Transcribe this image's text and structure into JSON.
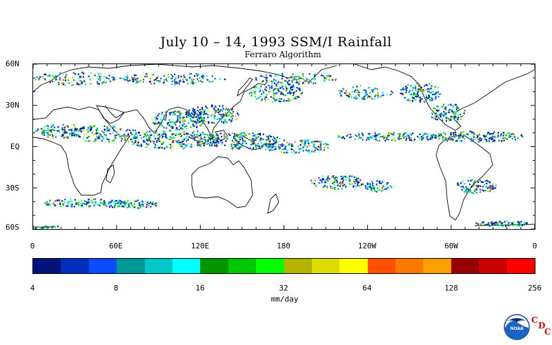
{
  "title": "July 10 – 14, 1993 SSM/I Rainfall",
  "subtitle": "Ferraro Algorithm",
  "lat_labels": [
    "60N",
    "30N",
    "EQ",
    "30S",
    "60S"
  ],
  "lon_labels": [
    "0",
    "60E",
    "120E",
    "180",
    "120W",
    "60W",
    "0"
  ],
  "colorbar": {
    "colors": [
      "#00137a",
      "#002fbe",
      "#0a4cff",
      "#009898",
      "#00c8c8",
      "#00ffff",
      "#009600",
      "#00c800",
      "#00ff00",
      "#b4b400",
      "#dcdc00",
      "#ffff00",
      "#ff5000",
      "#ff7800",
      "#ffa000",
      "#960000",
      "#c80000",
      "#ff0000"
    ],
    "tick_labels": [
      "4",
      "8",
      "16",
      "32",
      "64",
      "128",
      "256"
    ],
    "units": "mm/day"
  },
  "logo": {
    "text": "NOAA",
    "letters": [
      "C",
      "D",
      "C"
    ]
  }
}
